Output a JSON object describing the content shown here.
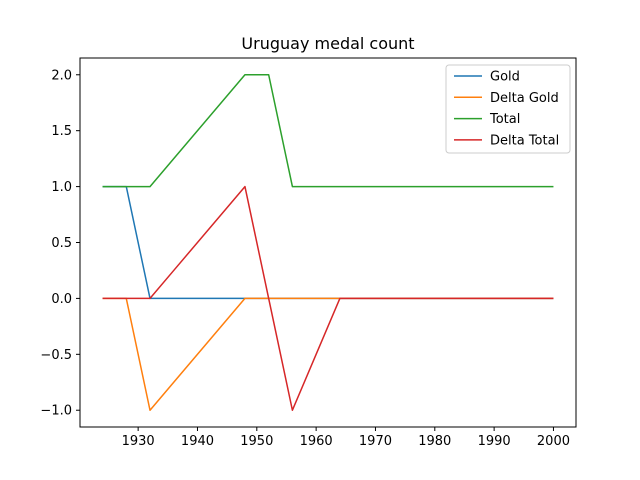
{
  "chart_data": {
    "type": "line",
    "title": "Uruguay medal count",
    "xlabel": "",
    "ylabel": "",
    "xlim": [
      1920.2,
      2003.8
    ],
    "ylim": [
      -1.15,
      2.15
    ],
    "xticks": [
      1930,
      1940,
      1950,
      1960,
      1970,
      1980,
      1990,
      2000
    ],
    "xtick_labels": [
      "1930",
      "1940",
      "1950",
      "1960",
      "1970",
      "1980",
      "1990",
      "2000"
    ],
    "yticks": [
      -1.0,
      -0.5,
      0.0,
      0.5,
      1.0,
      1.5,
      2.0
    ],
    "ytick_labels": [
      "−1.0",
      "−0.5",
      "0.0",
      "0.5",
      "1.0",
      "1.5",
      "2.0"
    ],
    "legend_position": "top-right",
    "grid": false,
    "x": [
      1924,
      1928,
      1932,
      1936,
      1948,
      1952,
      1956,
      1960,
      1964,
      1968,
      1972,
      1976,
      1980,
      1984,
      1988,
      1992,
      1996,
      2000
    ],
    "series": [
      {
        "name": "Gold",
        "color": "#1f77b4",
        "values": [
          1,
          1,
          0,
          0,
          0,
          0,
          0,
          0,
          0,
          0,
          0,
          0,
          0,
          0,
          0,
          0,
          0,
          0
        ]
      },
      {
        "name": "Delta Gold",
        "color": "#ff7f0e",
        "values": [
          0,
          0,
          -1,
          -0.75,
          0,
          0,
          0,
          0,
          0,
          0,
          0,
          0,
          0,
          0,
          0,
          0,
          0,
          0
        ]
      },
      {
        "name": "Total",
        "color": "#2ca02c",
        "values": [
          1,
          1,
          1,
          1.25,
          2,
          2,
          1,
          1,
          1,
          1,
          1,
          1,
          1,
          1,
          1,
          1,
          1,
          1
        ]
      },
      {
        "name": "Delta Total",
        "color": "#d62728",
        "values": [
          0,
          0,
          0,
          0.25,
          1,
          0,
          -1,
          -0.5,
          0,
          0,
          0,
          0,
          0,
          0,
          0,
          0,
          0,
          0
        ]
      }
    ]
  }
}
